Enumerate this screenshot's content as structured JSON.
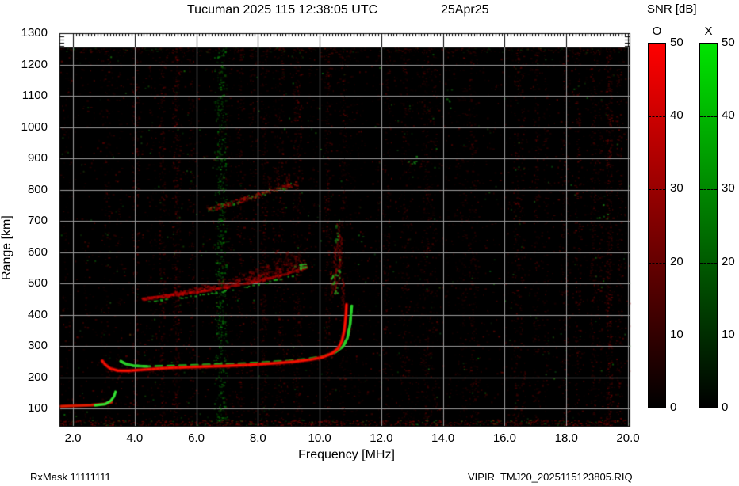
{
  "header": {
    "title": "Tucuman 2025 115 12:38:05 UTC",
    "date": "25Apr25"
  },
  "colorbar": {
    "title": "SNR [dB]",
    "o_label": "O",
    "x_label": "X",
    "tick_labels": [
      "0",
      "10",
      "20",
      "30",
      "40",
      "50"
    ],
    "tick_values": [
      0,
      10,
      20,
      30,
      40,
      50
    ],
    "o_top_color": "#ff0000",
    "x_top_color": "#00e400",
    "bottom_color": "#000000"
  },
  "axes": {
    "x_label": "Frequency [MHz]",
    "y_label": "Range [km]",
    "x_tick_labels": [
      "2.0",
      "4.0",
      "6.0",
      "8.0",
      "10.0",
      "12.0",
      "14.0",
      "16.0",
      "18.0",
      "20.0"
    ],
    "x_tick_values": [
      2,
      4,
      6,
      8,
      10,
      12,
      14,
      16,
      18,
      20
    ],
    "y_tick_labels": [
      "100",
      "200",
      "300",
      "400",
      "500",
      "600",
      "700",
      "800",
      "900",
      "1000",
      "1100",
      "1200",
      "1300"
    ],
    "y_tick_values": [
      100,
      200,
      300,
      400,
      500,
      600,
      700,
      800,
      900,
      1000,
      1100,
      1200,
      1300
    ]
  },
  "footer": {
    "left": "RxMask 11111111",
    "right": "VIPIR  TMJ20_2025115123805.RIQ"
  },
  "chart_data": {
    "type": "heatmap",
    "title": "Tucuman 2025 115 12:38:05 UTC  25Apr25",
    "xlabel": "Frequency [MHz]",
    "ylabel": "Range [km]",
    "xlim": [
      2,
      20
    ],
    "ylim": [
      100,
      1300
    ],
    "grid": true,
    "x_grid_step_mhz": 2,
    "y_grid_step_km": 100,
    "background": "#000000",
    "gridline_color": "#9c9c9c",
    "snr_colorbar": {
      "units": "dB",
      "min": 0,
      "max": 50,
      "o_mode_color": "red",
      "x_mode_color": "green"
    },
    "foF2_mhz_approx": 10.8,
    "fxF2_mhz_approx": 11.0,
    "f_trace_min_range_km_approx": 220,
    "e_region_echo_range_km_approx": 110,
    "traces": [
      {
        "name": "F-trace O-mode",
        "mode": "O",
        "style": "solid",
        "points_mhz_km": [
          [
            2.95,
            252
          ],
          [
            3.05,
            240
          ],
          [
            3.2,
            228
          ],
          [
            3.45,
            221
          ],
          [
            3.8,
            220
          ],
          [
            4.3,
            224
          ],
          [
            5.0,
            229
          ],
          [
            6.0,
            233
          ],
          [
            7.0,
            236
          ],
          [
            7.8,
            240
          ],
          [
            8.6,
            245
          ],
          [
            9.2,
            250
          ],
          [
            9.7,
            256
          ],
          [
            10.1,
            264
          ],
          [
            10.4,
            276
          ],
          [
            10.6,
            292
          ],
          [
            10.72,
            315
          ],
          [
            10.8,
            350
          ],
          [
            10.85,
            395
          ],
          [
            10.87,
            432
          ]
        ]
      },
      {
        "name": "F-trace X-mode",
        "mode": "X",
        "style": "dashed",
        "points_mhz_km": [
          [
            3.55,
            251
          ],
          [
            3.7,
            243
          ],
          [
            3.95,
            237
          ],
          [
            4.4,
            234
          ],
          [
            5.2,
            236
          ],
          [
            6.2,
            239
          ],
          [
            7.2,
            242
          ],
          [
            8.2,
            247
          ],
          [
            9.0,
            252
          ],
          [
            9.6,
            258
          ],
          [
            10.1,
            266
          ],
          [
            10.5,
            280
          ],
          [
            10.75,
            297
          ],
          [
            10.9,
            325
          ],
          [
            10.99,
            370
          ],
          [
            11.04,
            428
          ]
        ]
      },
      {
        "name": "E-region echo O-mode",
        "mode": "O",
        "style": "solid",
        "points_mhz_km": [
          [
            1.62,
            107
          ],
          [
            2.1,
            109
          ],
          [
            2.6,
            111
          ],
          [
            3.0,
            114
          ],
          [
            3.25,
            120
          ]
        ]
      },
      {
        "name": "E-region echo X-mode",
        "mode": "X",
        "style": "solid",
        "points_mhz_km": [
          [
            2.72,
            110
          ],
          [
            3.05,
            114
          ],
          [
            3.22,
            124
          ],
          [
            3.33,
            138
          ],
          [
            3.38,
            153
          ]
        ]
      },
      {
        "name": "second-hop F echo (diffuse spread)",
        "mode": "O+X",
        "style": "diffuse",
        "points_mhz_km": [
          [
            4.25,
            452
          ],
          [
            4.8,
            458
          ],
          [
            5.5,
            466
          ],
          [
            6.2,
            476
          ],
          [
            6.9,
            487
          ],
          [
            7.6,
            500
          ],
          [
            8.3,
            515
          ],
          [
            8.9,
            530
          ],
          [
            9.35,
            542
          ],
          [
            9.6,
            550
          ]
        ],
        "spread_km_above": 70
      },
      {
        "name": "third-hop F echo (faint speckle)",
        "mode": "O+X",
        "style": "speckle",
        "points_mhz_km": [
          [
            6.3,
            737
          ],
          [
            6.9,
            752
          ],
          [
            7.5,
            770
          ],
          [
            8.1,
            788
          ],
          [
            8.7,
            806
          ],
          [
            9.25,
            822
          ]
        ]
      },
      {
        "name": "F-cusp range spread",
        "mode": "O+X",
        "style": "vertical-spread",
        "freq_mhz": [
          10.3,
          10.8
        ],
        "range_km": [
          430,
          720
        ]
      }
    ],
    "rfi_band": {
      "center_mhz": 6.78,
      "width_mhz": 0.3,
      "color": "green",
      "extent_km": [
        50,
        1250
      ]
    },
    "noise": "sparse dark-red vertically-striped background speckle with occasional green specks over black"
  }
}
